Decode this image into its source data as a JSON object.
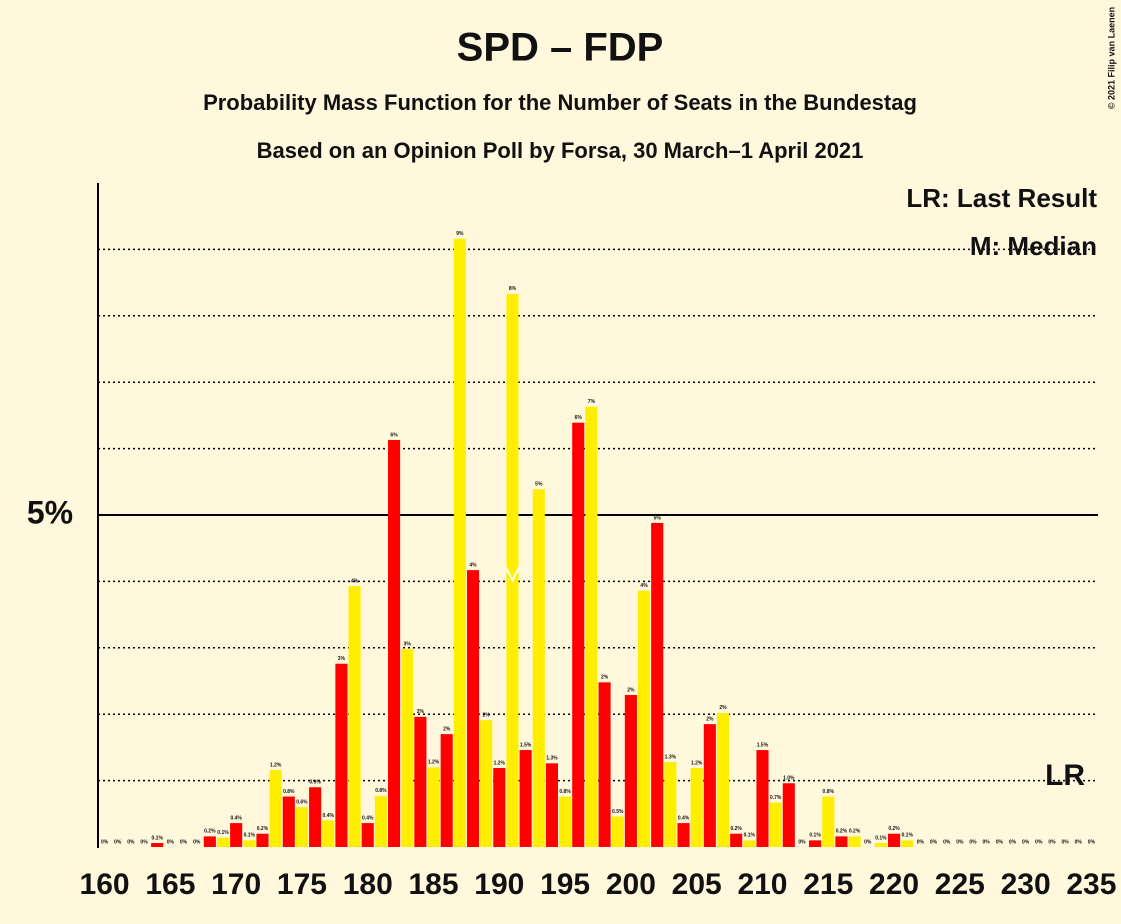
{
  "chart_data": {
    "type": "bar",
    "title": "SPD – FDP",
    "subtitle": "Probability Mass Function for the Number of Seats in the Bundestag",
    "subtitle2": "Based on an Opinion Poll by Forsa, 30 March–1 April 2021",
    "copyright": "© 2021 Filip van Laenen",
    "legend": [
      "LR: Last Result",
      "M: Median"
    ],
    "bar_colors": [
      "#ff0000",
      "#ffee00"
    ],
    "x": [
      160,
      161,
      162,
      163,
      164,
      165,
      166,
      167,
      168,
      169,
      170,
      171,
      172,
      173,
      174,
      175,
      176,
      177,
      178,
      179,
      180,
      181,
      182,
      183,
      184,
      185,
      186,
      187,
      188,
      189,
      190,
      191,
      192,
      193,
      194,
      195,
      196,
      197,
      198,
      199,
      200,
      201,
      202,
      203,
      204,
      205,
      206,
      207,
      208,
      209,
      210,
      211,
      212,
      213,
      214,
      215,
      216,
      217,
      218,
      219,
      220,
      221,
      222,
      223,
      224,
      225,
      226,
      227,
      228,
      229,
      230,
      231,
      232,
      233,
      234,
      235
    ],
    "values": [
      0,
      0,
      0,
      0,
      0.06,
      0,
      0,
      0,
      0.16,
      0.14,
      0.36,
      0.1,
      0.2,
      1.16,
      0.76,
      0.6,
      0.9,
      0.4,
      2.76,
      3.93,
      0.36,
      0.77,
      6.13,
      2.98,
      1.96,
      1.2,
      1.7,
      9.16,
      4.17,
      1.91,
      1.19,
      8.33,
      1.46,
      5.39,
      1.26,
      0.76,
      6.39,
      6.63,
      2.48,
      0.46,
      2.29,
      3.86,
      4.88,
      1.28,
      0.36,
      1.19,
      1.85,
      2.02,
      0.2,
      0.1,
      1.46,
      0.67,
      0.96,
      0,
      0.1,
      0.76,
      0.16,
      0.16,
      0,
      0.06,
      0.2,
      0.1,
      0,
      0,
      0,
      0,
      0,
      0,
      0,
      0,
      0,
      0,
      0,
      0,
      0,
      0
    ],
    "value_labels": [
      "0%",
      "0%",
      "0%",
      "0%",
      "0.1%",
      "0%",
      "0%",
      "0%",
      "0.2%",
      "0.1%",
      "0.4%",
      "0.1%",
      "0.2%",
      "1.2%",
      "0.8%",
      "0.6%",
      "0.9%",
      "0.4%",
      "3%",
      "4%",
      "0.4%",
      "0.8%",
      "6%",
      "3%",
      "2%",
      "1.2%",
      "2%",
      "9%",
      "4%",
      "2%",
      "1.2%",
      "8%",
      "1.5%",
      "5%",
      "1.3%",
      "0.8%",
      "6%",
      "7%",
      "2%",
      "0.5%",
      "2%",
      "4%",
      "5%",
      "1.3%",
      "0.4%",
      "1.2%",
      "2%",
      "2%",
      "0.2%",
      "0.1%",
      "1.5%",
      "0.7%",
      "1.0%",
      "0%",
      "0.1%",
      "0.8%",
      "0.2%",
      "0.2%",
      "0%",
      "0.1%",
      "0.2%",
      "0.1%",
      "0%",
      "0%",
      "0%",
      "0%",
      "0%",
      "0%",
      "0%",
      "0%",
      "0%",
      "0%",
      "0%",
      "0%",
      "0%",
      "0%"
    ],
    "median": 191,
    "last_result": {
      "label": "LR",
      "x": 233
    },
    "xlim": [
      159.5,
      235.5
    ],
    "xticks": [
      160,
      165,
      170,
      175,
      180,
      185,
      190,
      195,
      200,
      205,
      210,
      215,
      220,
      225,
      230,
      235
    ],
    "ylim": [
      0,
      10
    ],
    "yticks": [
      {
        "value": 5,
        "label": "5%"
      }
    ],
    "minor_grid": [
      1,
      2,
      3,
      4,
      6,
      7,
      8,
      9
    ]
  }
}
